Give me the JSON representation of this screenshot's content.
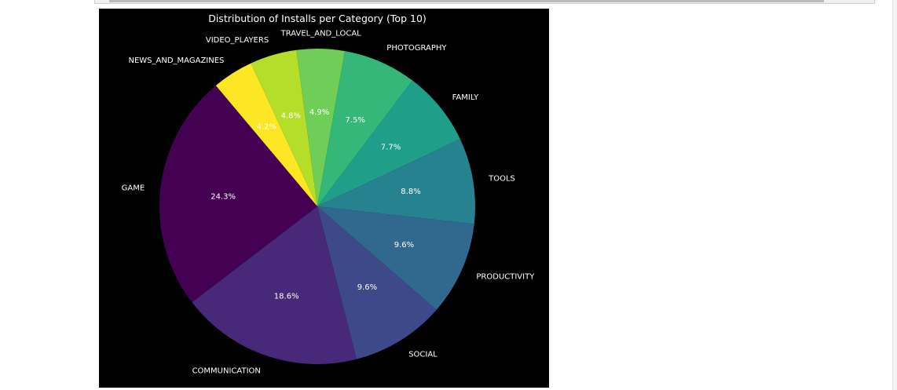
{
  "chart_data": {
    "type": "pie",
    "title": "Distribution of Installs per Category (Top 10)",
    "start_angle_deg": 130,
    "direction": "counterclockwise",
    "slices": [
      {
        "label": "GAME",
        "pct_label": "24.3%",
        "value": 24.3,
        "color": "#440154"
      },
      {
        "label": "COMMUNICATION",
        "pct_label": "18.6%",
        "value": 18.6,
        "color": "#482878"
      },
      {
        "label": "SOCIAL",
        "pct_label": "9.6%",
        "value": 9.6,
        "color": "#3e4989"
      },
      {
        "label": "PRODUCTIVITY",
        "pct_label": "9.6%",
        "value": 9.6,
        "color": "#31688e"
      },
      {
        "label": "TOOLS",
        "pct_label": "8.8%",
        "value": 8.8,
        "color": "#26828e"
      },
      {
        "label": "FAMILY",
        "pct_label": "7.7%",
        "value": 7.7,
        "color": "#1f9e89"
      },
      {
        "label": "PHOTOGRAPHY",
        "pct_label": "7.5%",
        "value": 7.5,
        "color": "#35b779"
      },
      {
        "label": "TRAVEL_AND_LOCAL",
        "pct_label": "4.9%",
        "value": 4.9,
        "color": "#6ece58"
      },
      {
        "label": "VIDEO_PLAYERS",
        "pct_label": "4.8%",
        "value": 4.8,
        "color": "#b5de2b"
      },
      {
        "label": "NEWS_AND_MAGAZINES",
        "pct_label": "4.2%",
        "value": 4.2,
        "color": "#fde725"
      }
    ]
  }
}
